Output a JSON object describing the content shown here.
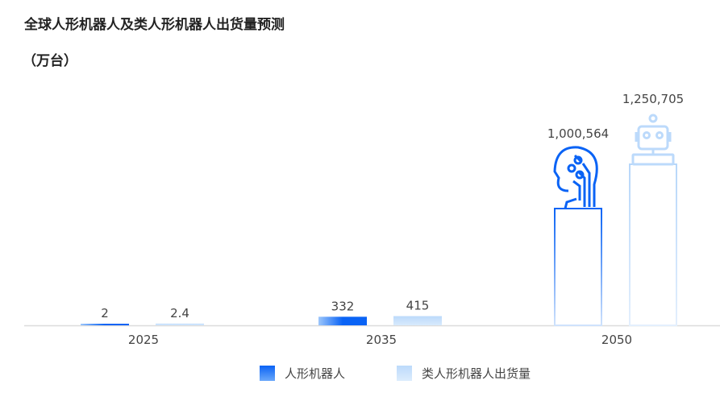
{
  "title": "全球人形机器人及类人形机器人出货量预测",
  "unit": "（万台）",
  "chart_data": {
    "type": "bar",
    "title": "全球人形机器人及类人形机器人出货量预测",
    "ylabel": "（万台）",
    "categories": [
      "2025",
      "2035",
      "2050"
    ],
    "series": [
      {
        "name": "人形机器人",
        "values": [
          2,
          332,
          1000564
        ],
        "labels": [
          "2",
          "332",
          "1,000,564"
        ],
        "color": "#0a63f5"
      },
      {
        "name": "类人形机器人出货量",
        "values": [
          2.4,
          415,
          1250705
        ],
        "labels": [
          "2.4",
          "415",
          "1,250,705"
        ],
        "color": "#bfdcfb"
      }
    ],
    "icons": [
      "humanoid-head-icon",
      "robot-icon"
    ],
    "grid": false,
    "legend": "bottom"
  }
}
